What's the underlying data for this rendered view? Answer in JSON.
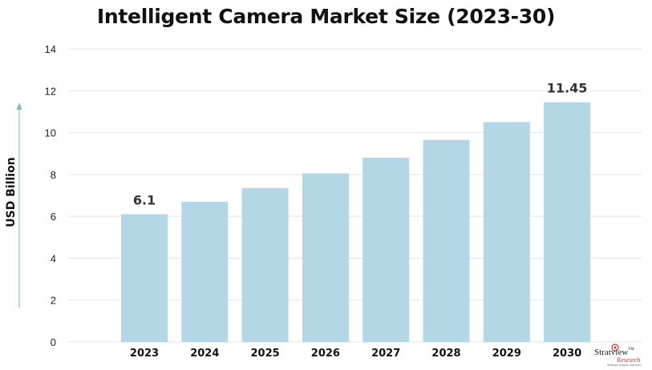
{
  "chart_data": {
    "type": "bar",
    "title": "Intelligent Camera Market Size (2023-30)",
    "ylabel": "USD Billion",
    "xlabel": "",
    "categories": [
      "2023",
      "2024",
      "2025",
      "2026",
      "2027",
      "2028",
      "2029",
      "2030"
    ],
    "values": [
      6.1,
      6.7,
      7.35,
      8.05,
      8.8,
      9.65,
      10.5,
      11.45
    ],
    "data_labels": [
      {
        "index": 0,
        "text": "6.1"
      },
      {
        "index": 7,
        "text": "11.45"
      }
    ],
    "ylim": [
      0,
      14
    ],
    "yticks": [
      "0",
      "2",
      "4",
      "6",
      "8",
      "10",
      "12",
      "14"
    ],
    "grid": true,
    "bar_color": "#b3d7e4",
    "grid_color": "#e3e3e3",
    "arrow_color": "#7fb6c8"
  },
  "logo": {
    "name": "Stratview",
    "tm": "TM",
    "sub": "Research",
    "tagline": "Strategic Insights Delivered"
  }
}
